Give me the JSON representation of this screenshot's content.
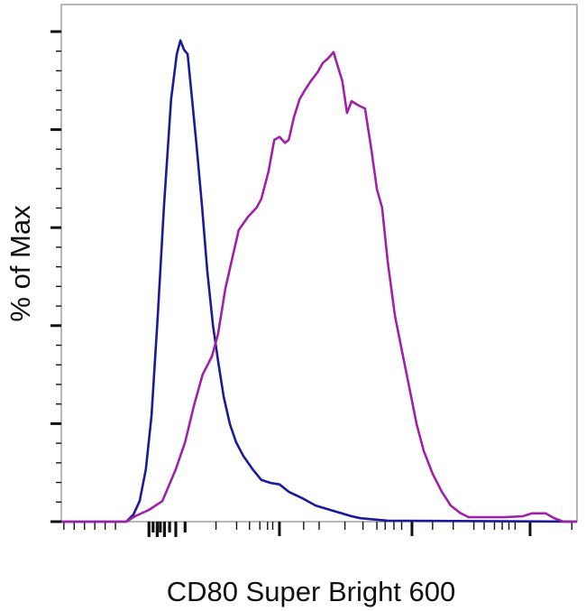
{
  "chart_data": {
    "type": "line",
    "title": "",
    "xlabel": "CD80 Super Bright 600",
    "ylabel": "% of Max",
    "xlim": [
      0,
      1000
    ],
    "ylim": [
      0,
      100
    ],
    "y_major_ticks": [
      0,
      20,
      40,
      60,
      80,
      100
    ],
    "x_major_ticks": [
      423,
      680,
      909
    ],
    "x_cluster_ticks": [
      170,
      178,
      186,
      192,
      200,
      210,
      222,
      240
    ],
    "grid": false,
    "legend": "none",
    "series": [
      {
        "name": "blue-histogram",
        "color": "#1a1a9a",
        "x": [
          0,
          126,
          140,
          152,
          164,
          175,
          187,
          199,
          213,
          224,
          231,
          238,
          245,
          252,
          262,
          273,
          283,
          294,
          304,
          315,
          327,
          339,
          353,
          371,
          388,
          406,
          423,
          441,
          467,
          493,
          528,
          563,
          580,
          633,
          1000
        ],
        "y": [
          0,
          0,
          1.5,
          4.2,
          10.7,
          21.7,
          42,
          64.1,
          86.2,
          95.4,
          98.2,
          96.3,
          95.4,
          88,
          77,
          64.1,
          51.2,
          40.1,
          32.8,
          25.4,
          19.9,
          16.2,
          13.4,
          10.7,
          8.5,
          7.9,
          7.6,
          6.1,
          4.8,
          3.3,
          2.2,
          1.1,
          0.7,
          0.2,
          0
        ]
      },
      {
        "name": "magenta-histogram",
        "color": "#a020a8",
        "x": [
          0,
          126,
          143,
          170,
          196,
          222,
          240,
          257,
          274,
          292,
          304,
          318,
          332,
          344,
          362,
          379,
          388,
          402,
          413,
          423,
          434,
          441,
          451,
          462,
          472,
          484,
          497,
          507,
          517,
          528,
          537,
          545,
          554,
          563,
          577,
          589,
          601,
          612,
          622,
          633,
          647,
          661,
          675,
          689,
          703,
          720,
          738,
          755,
          773,
          790,
          860,
          895,
          913,
          939,
          956,
          974,
          1000
        ],
        "y": [
          0,
          0,
          1.1,
          2.4,
          4.2,
          10.7,
          16.2,
          23.6,
          30,
          33.7,
          38.3,
          47.5,
          54,
          59.5,
          62.2,
          64.1,
          65.9,
          71.5,
          77.9,
          78.5,
          77.3,
          77.9,
          82.5,
          86.2,
          88,
          89.9,
          91.7,
          93.6,
          94.5,
          95.8,
          92.6,
          89.9,
          83.4,
          85.8,
          84.9,
          84.3,
          76.1,
          67.8,
          64.1,
          53,
          42,
          34.6,
          27.3,
          19.9,
          14.4,
          9.8,
          6.1,
          3.3,
          1.8,
          0.9,
          0.9,
          1.1,
          1.7,
          1.7,
          0.7,
          0,
          0
        ]
      }
    ]
  }
}
